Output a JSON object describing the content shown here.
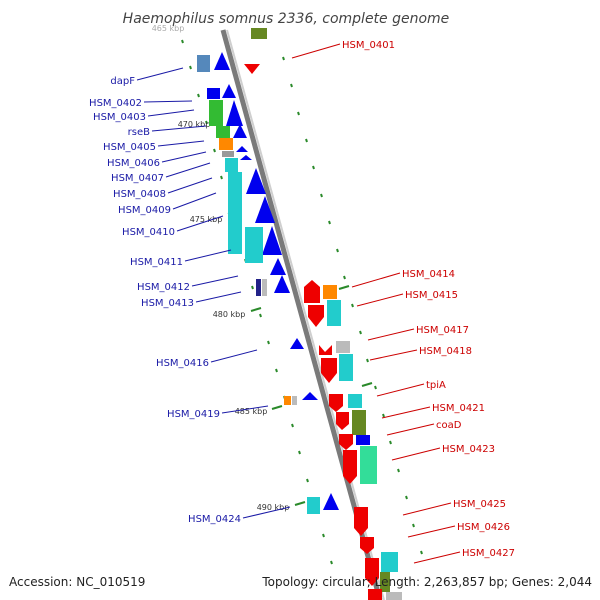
{
  "title": "Haemophilus somnus 2336, complete genome",
  "footer": {
    "accession": "Accession: NC_010519",
    "topology": "Topology: circular; Length: 2,263,857 bp; Genes: 2,044"
  },
  "axis": {
    "ticks": [
      "465 kbp",
      "470 kbp",
      "475 kbp",
      "480 kbp",
      "485 kbp",
      "490 kbp"
    ]
  },
  "colors": {
    "blue_arrow": "#0000ee",
    "red_arrow": "#ee0000",
    "green": "#33bb33",
    "cyan": "#22cccc",
    "orange": "#ff8800",
    "olive": "#668822",
    "gray": "#bbbbbb",
    "backbone": "#888888",
    "left_label": "#1a1aa6",
    "right_label": "#cc0000"
  },
  "left_genes": [
    "dapF",
    "HSM_0402",
    "HSM_0403",
    "rseB",
    "HSM_0405",
    "HSM_0406",
    "HSM_0407",
    "HSM_0408",
    "HSM_0409",
    "HSM_0410",
    "HSM_0411",
    "HSM_0412",
    "HSM_0413",
    "HSM_0416",
    "HSM_0419",
    "HSM_0424"
  ],
  "right_genes": [
    "HSM_0401",
    "HSM_0414",
    "HSM_0415",
    "HSM_0417",
    "HSM_0418",
    "tpiA",
    "HSM_0421",
    "coaD",
    "HSM_0423",
    "HSM_0425",
    "HSM_0426",
    "HSM_0427"
  ]
}
